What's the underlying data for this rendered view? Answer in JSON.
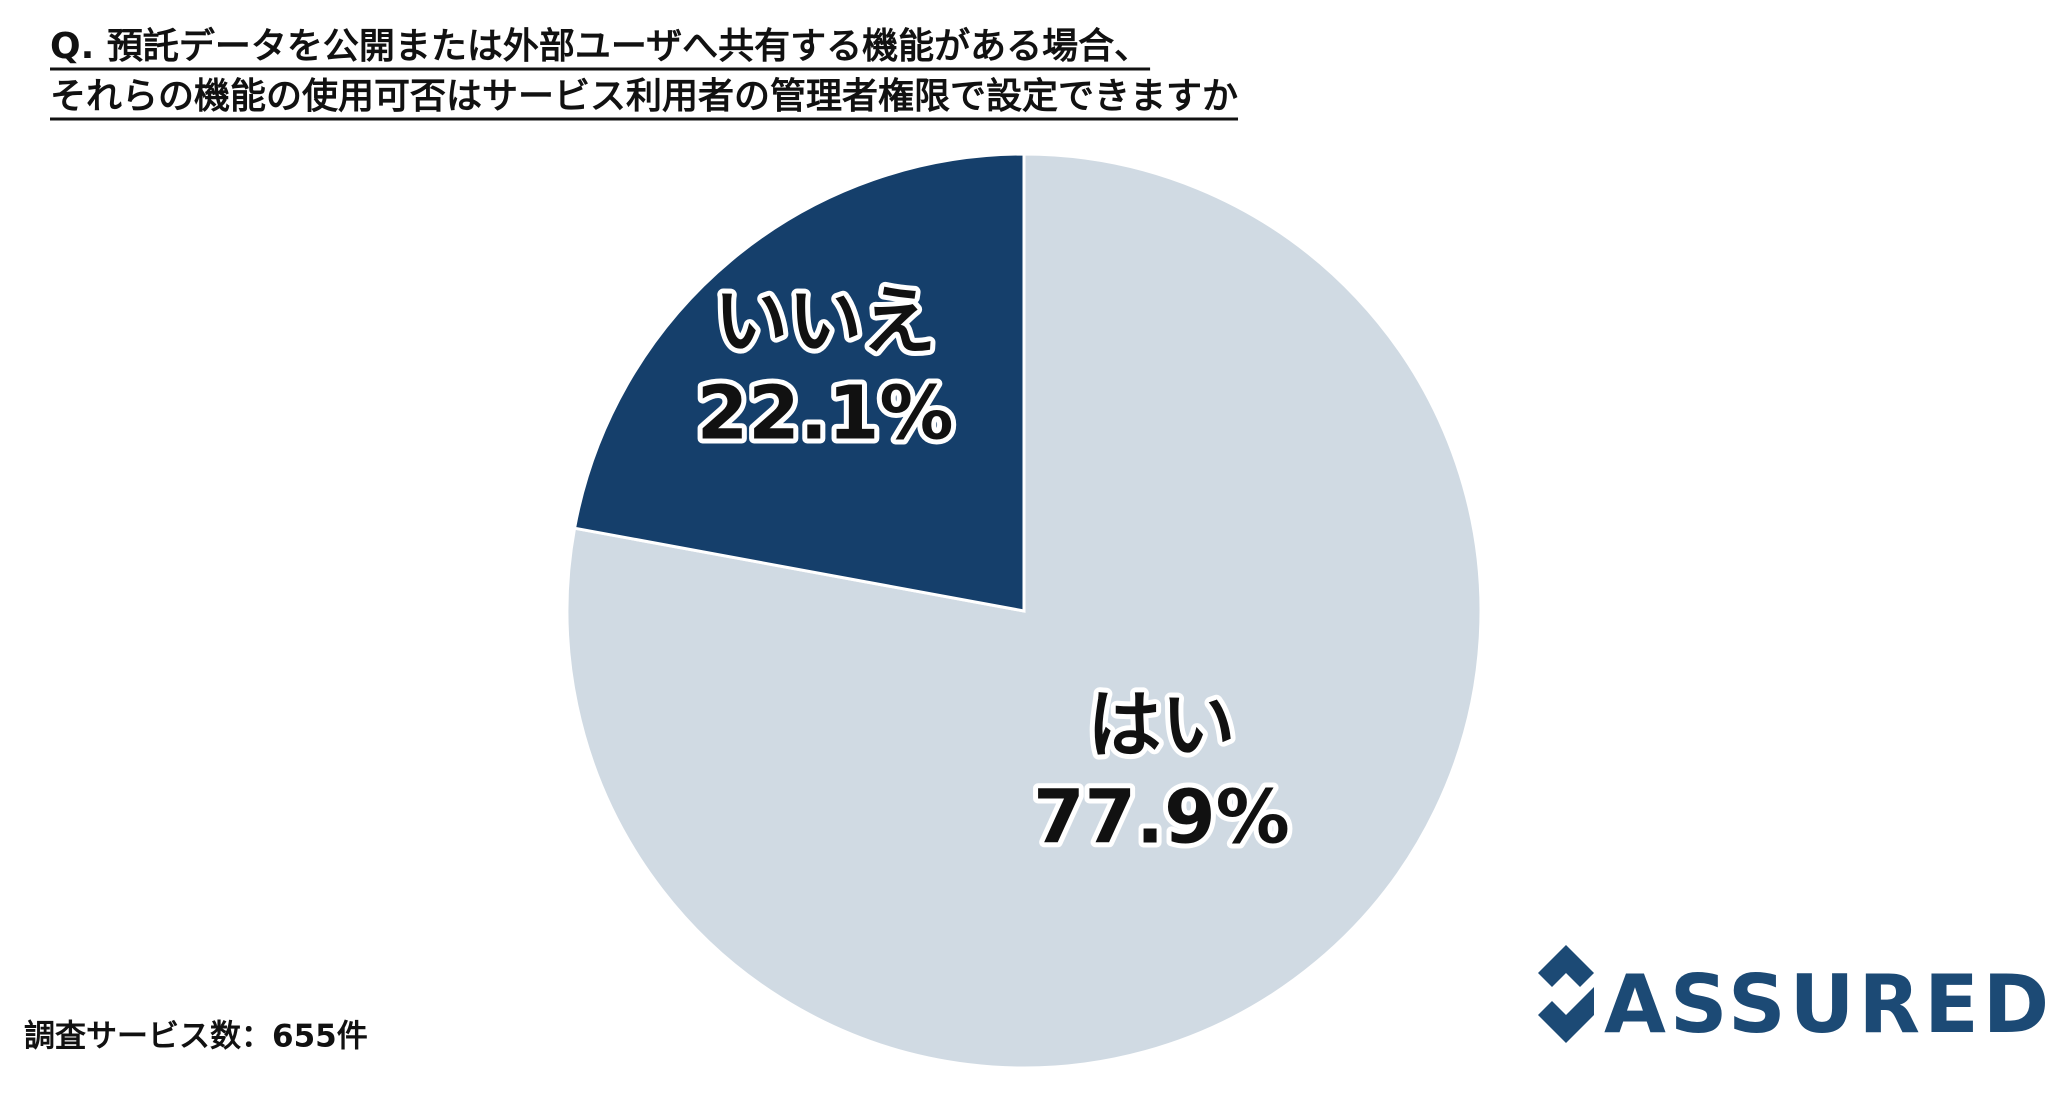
{
  "chart_data": {
    "type": "pie",
    "title": [
      "Q. 預託データを公開または外部ユーザへ共有する機能がある場合、",
      "それらの機能の使用可否はサービス利用者の管理者権限で設定できますか"
    ],
    "categories": [
      "はい",
      "いいえ"
    ],
    "values": [
      77.9,
      22.1
    ],
    "value_labels": [
      "77.9%",
      "22.1%"
    ],
    "colors": [
      "#d0dae3",
      "#153f6b"
    ],
    "note": "調査サービス数：655件",
    "logo": "ASSURED"
  }
}
